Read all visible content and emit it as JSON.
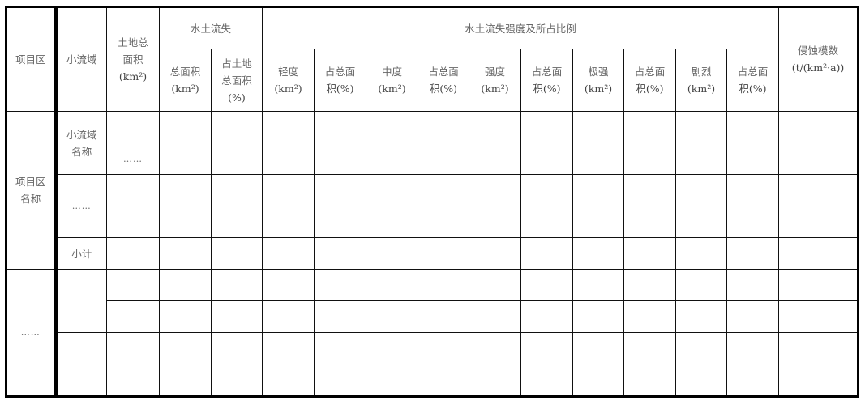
{
  "header": {
    "project_area": "项目区",
    "small_watershed": "小流域",
    "land_area": [
      "土地总",
      "面积",
      "(km²)"
    ],
    "soil_loss": "水土流失",
    "soil_loss_total": [
      "总面积",
      "(km²)"
    ],
    "soil_loss_pct": [
      "占土地",
      "总面积",
      "(%)"
    ],
    "intensity_group": "水土流失强度及所占比例",
    "intensity_cols": [
      [
        "轻度",
        "(km²)"
      ],
      [
        "占总面",
        "积(%)"
      ],
      [
        "中度",
        "(km²)"
      ],
      [
        "占总面",
        "积(%)"
      ],
      [
        "强度",
        "(km²)"
      ],
      [
        "占总面",
        "积(%)"
      ],
      [
        "极强",
        "(km²)"
      ],
      [
        "占总面",
        "积(%)"
      ],
      [
        "剧烈",
        "(km²)"
      ],
      [
        "占总面",
        "积(%)"
      ]
    ],
    "erosion_modulus": [
      "侵蚀模数",
      "(t/(km²·a))"
    ]
  },
  "body": {
    "group1_project": [
      "项目区",
      "名称"
    ],
    "group1_watershed": [
      "小流域",
      "名称"
    ],
    "group1_land_area_row2": "……",
    "group1_watershed_more": "……",
    "subtotal": "小计",
    "group2_project": "……"
  }
}
